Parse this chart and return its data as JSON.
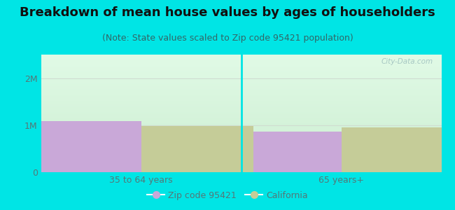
{
  "title": "Breakdown of mean house values by ages of householders",
  "subtitle": "(Note: State values scaled to Zip code 95421 population)",
  "categories": [
    "35 to 64 years",
    "65 years+"
  ],
  "zip_values": [
    1080000,
    860000
  ],
  "ca_values": [
    980000,
    950000
  ],
  "ylim": [
    0,
    2500000
  ],
  "yticks": [
    0,
    1000000,
    2000000
  ],
  "ytick_labels": [
    "0",
    "1M",
    "2M"
  ],
  "zip_color": "#c9a8d8",
  "ca_color": "#c5cc98",
  "legend_zip_label": "Zip code 95421",
  "legend_ca_label": "California",
  "bar_width": 0.28,
  "title_fontsize": 13,
  "subtitle_fontsize": 9,
  "tick_fontsize": 9,
  "legend_fontsize": 9,
  "watermark": "City-Data.com",
  "bg_color": "#00e5e5",
  "grid_color": "#d0ddd0",
  "tick_color": "#557777",
  "title_color": "#111111",
  "subtitle_color": "#336666"
}
